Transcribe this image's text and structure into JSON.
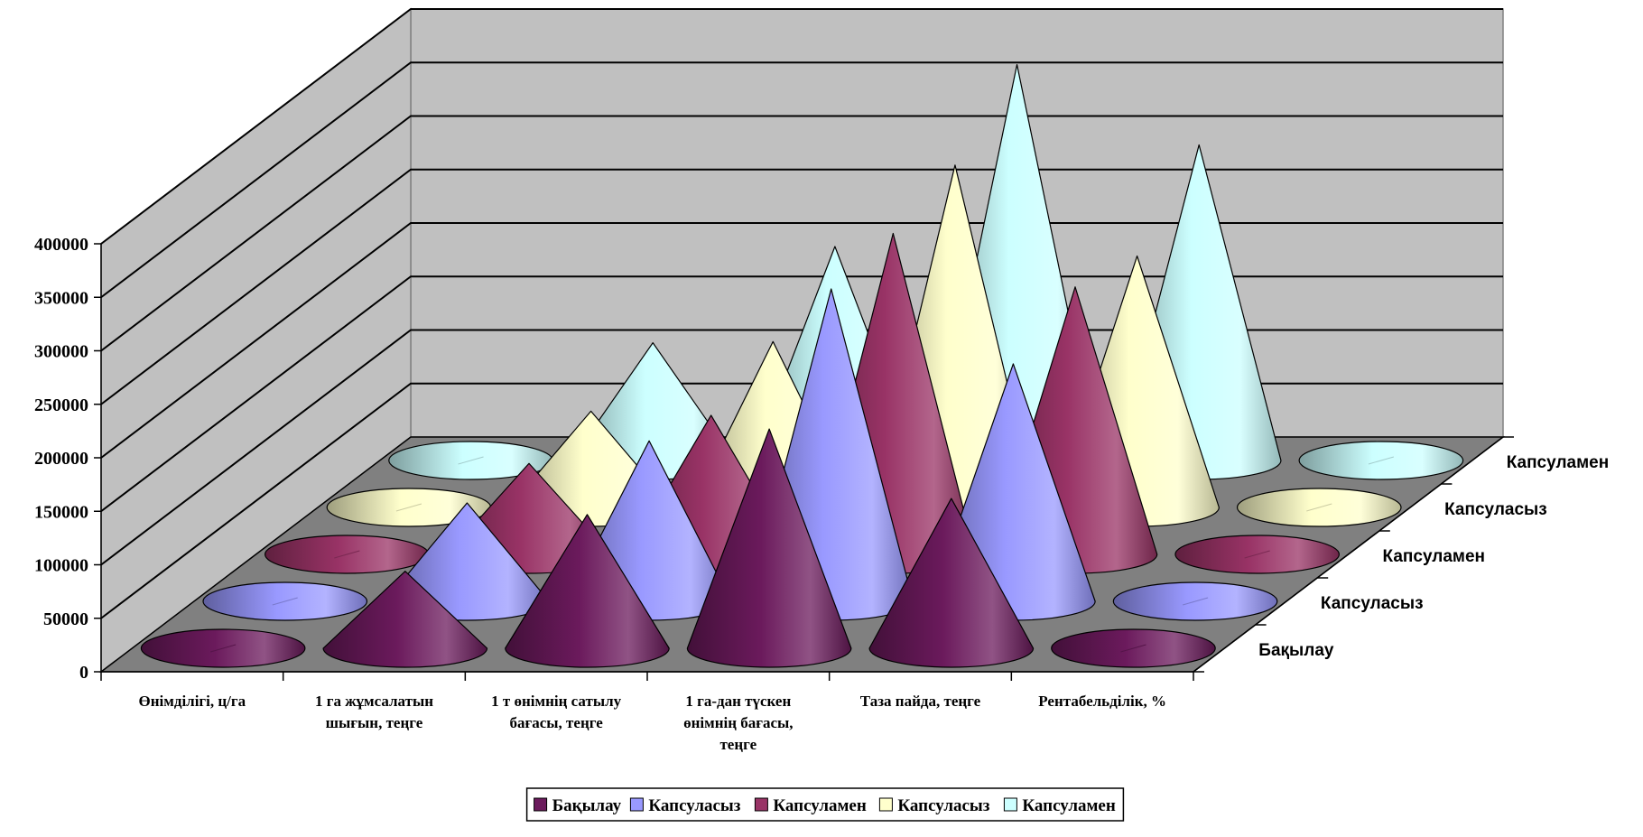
{
  "chart_data": {
    "type": "bar",
    "style": "3d-cone",
    "categories": [
      [
        "Өнімділігі, ц/га"
      ],
      [
        "1 га жұмсалатын",
        "шығын, теңге"
      ],
      [
        "1 т өнімнің сатылу",
        "бағасы, теңге"
      ],
      [
        "1 га-дан түскен",
        "өнімнің бағасы,",
        "теңге"
      ],
      [
        "Таза пайда, теңге"
      ],
      [
        "Рентабельділік, %"
      ]
    ],
    "series": [
      {
        "name": "Бақылау",
        "color": "#6b1a5c",
        "values": [
          0,
          72000,
          125000,
          205000,
          140000,
          0
        ]
      },
      {
        "name": "Капсуласыз",
        "color": "#9999ff",
        "values": [
          0,
          92000,
          150000,
          292000,
          222000,
          0
        ]
      },
      {
        "name": "Капсулamen",
        "color": "#993366",
        "values": [
          0,
          85000,
          130000,
          300000,
          250000,
          0
        ]
      },
      {
        "name": "Капсуласыз",
        "color": "#ffffcc",
        "values": [
          0,
          90000,
          155000,
          320000,
          235000,
          0
        ]
      },
      {
        "name": "Капсуламен",
        "color": "#ccffff",
        "values": [
          0,
          110000,
          200000,
          370000,
          295000,
          0
        ]
      }
    ],
    "ylim": [
      0,
      400000
    ],
    "yticks": [
      "0",
      "50000",
      "100000",
      "150000",
      "200000",
      "250000",
      "300000",
      "350000",
      "400000"
    ],
    "depth_labels": [
      "Бақылау",
      "Капсуласыз",
      "Капсуламен",
      "Капсуласыз",
      "Капсуламен"
    ],
    "legend": {
      "position": "bottom",
      "labels": [
        "Бақылау",
        "Капсуласыз",
        "Капсуламен",
        "Капсуласыз",
        "Капсуламен"
      ]
    },
    "grid": true,
    "colors": {
      "back_wall": "#c0c0c0",
      "floor": "#808080",
      "side_wall": "#c0c0c0"
    }
  }
}
